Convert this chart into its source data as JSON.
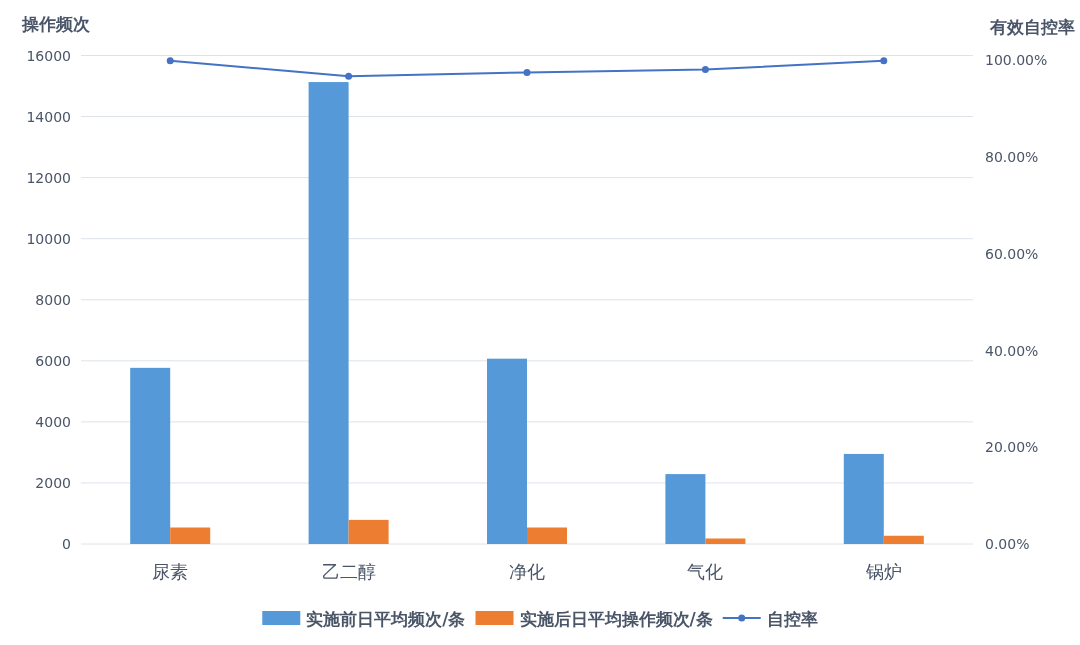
{
  "chart_data": {
    "type": "bar",
    "ylabel": "操作频次",
    "y2label": "有效自控率",
    "categories": [
      "尿素",
      "乙二醇",
      "净化",
      "气化",
      "锅炉"
    ],
    "series": [
      {
        "name": "实施前日平均频次/条",
        "color": "#5599d8",
        "values": [
          5770,
          15130,
          6070,
          2290,
          2950
        ]
      },
      {
        "name": "实施后日平均操作频次/条",
        "color": "#ed7d31",
        "values": [
          540,
          790,
          540,
          180,
          270
        ]
      },
      {
        "name": "自控率",
        "type": "line",
        "axis": "y2",
        "color": "#4472c4",
        "values": [
          99.9,
          96.7,
          97.5,
          98.1,
          99.9
        ]
      }
    ],
    "ylim": [
      0,
      16000
    ],
    "yticks": [
      0,
      2000,
      4000,
      6000,
      8000,
      10000,
      12000,
      14000,
      16000
    ],
    "y2lim": [
      0,
      101
    ],
    "y2ticks": [
      {
        "value": 0,
        "label": "0.00%"
      },
      {
        "value": 20,
        "label": "20.00%"
      },
      {
        "value": 40,
        "label": "40.00%"
      },
      {
        "value": 60,
        "label": "60.00%"
      },
      {
        "value": 80,
        "label": "80.00%"
      },
      {
        "value": 100,
        "label": "100.00%"
      }
    ],
    "grid": "y",
    "legend": "bottom",
    "marker": "circle"
  }
}
